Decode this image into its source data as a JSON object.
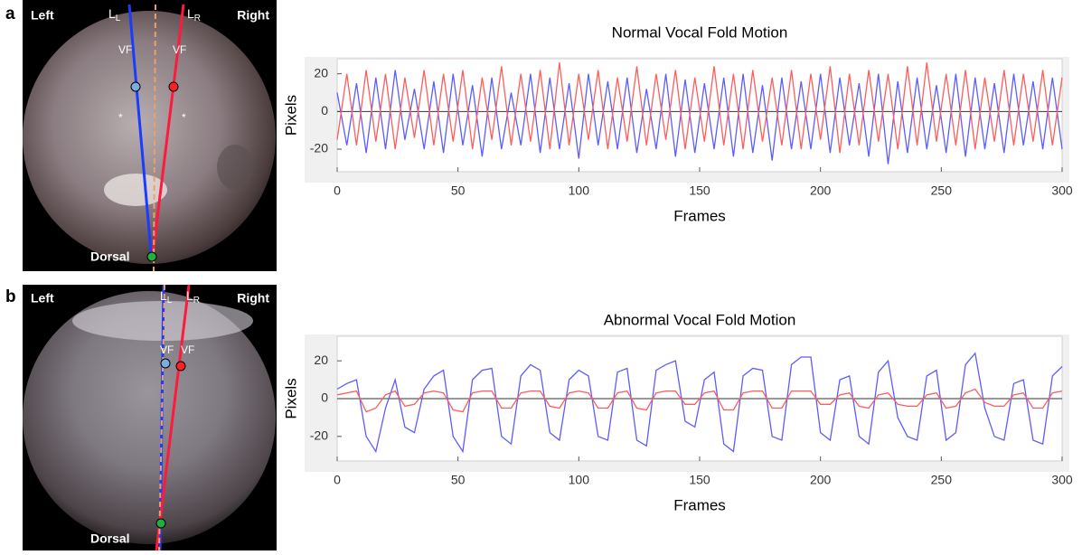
{
  "panels": [
    {
      "label": "a",
      "left": "Left",
      "right": "Right",
      "dorsal": "Dorsal",
      "line_left": "L",
      "line_left_sub": "L",
      "line_right": "L",
      "line_right_sub": "R",
      "vf": "VF",
      "asterisk": "*"
    },
    {
      "label": "b",
      "left": "Left",
      "right": "Right",
      "dorsal": "Dorsal",
      "line_left": "L",
      "line_left_sub": "L",
      "line_right": "L",
      "line_right_sub": "R",
      "vf": "VF"
    }
  ],
  "chart_data": [
    {
      "type": "line",
      "title": "Normal Vocal Fold Motion",
      "xlabel": "Frames",
      "ylabel": "Pixels",
      "xlim": [
        0,
        300
      ],
      "xticks": [
        0,
        50,
        100,
        150,
        200,
        250,
        300
      ],
      "ylim": [
        -32,
        28
      ],
      "yticks": [
        -20,
        0,
        20
      ],
      "x": [
        0,
        4,
        8,
        12,
        16,
        20,
        24,
        28,
        32,
        36,
        40,
        44,
        48,
        52,
        56,
        60,
        64,
        68,
        72,
        76,
        80,
        84,
        88,
        92,
        96,
        100,
        104,
        108,
        112,
        116,
        120,
        124,
        128,
        132,
        136,
        140,
        144,
        148,
        152,
        156,
        160,
        164,
        168,
        172,
        176,
        180,
        184,
        188,
        192,
        196,
        200,
        204,
        208,
        212,
        216,
        220,
        224,
        228,
        232,
        236,
        240,
        244,
        248,
        252,
        256,
        260,
        264,
        268,
        272,
        276,
        280,
        284,
        288,
        292,
        296,
        300
      ],
      "series": [
        {
          "color": "#5c5cff",
          "values": [
            10,
            -18,
            15,
            -22,
            18,
            -20,
            22,
            -15,
            12,
            -20,
            16,
            -22,
            20,
            -18,
            14,
            -24,
            18,
            -20,
            10,
            -18,
            20,
            -22,
            18,
            -20,
            15,
            -25,
            20,
            -18,
            16,
            -20,
            18,
            -22,
            12,
            -20,
            20,
            -24,
            17,
            -22,
            15,
            -20,
            18,
            -24,
            20,
            -22,
            14,
            -26,
            18,
            -20,
            16,
            -20,
            20,
            -22,
            18,
            -18,
            15,
            -24,
            20,
            -28,
            16,
            -22,
            18,
            -20,
            14,
            -22,
            20,
            -24,
            18,
            -20,
            15,
            -22,
            20,
            -18,
            16,
            -20,
            18,
            -20
          ]
        },
        {
          "color": "#ff5c5c",
          "values": [
            -15,
            20,
            -18,
            22,
            -16,
            20,
            -20,
            18,
            -14,
            22,
            -18,
            20,
            -16,
            22,
            -20,
            18,
            -15,
            24,
            -18,
            20,
            -16,
            22,
            -20,
            26,
            -18,
            20,
            -15,
            22,
            -20,
            18,
            -16,
            24,
            -18,
            20,
            -15,
            22,
            -20,
            18,
            -16,
            24,
            -18,
            20,
            -20,
            22,
            -16,
            18,
            -18,
            22,
            -20,
            20,
            -15,
            24,
            -22,
            20,
            -18,
            22,
            -16,
            20,
            -20,
            24,
            -18,
            26,
            -16,
            20,
            -18,
            22,
            -20,
            18,
            -16,
            22,
            -18,
            20,
            -16,
            22,
            -18,
            18
          ]
        }
      ]
    },
    {
      "type": "line",
      "title": "Abnormal Vocal Fold Motion",
      "xlabel": "Frames",
      "ylabel": "Pixels",
      "xlim": [
        0,
        300
      ],
      "xticks": [
        0,
        50,
        100,
        150,
        200,
        250,
        300
      ],
      "ylim": [
        -33,
        33
      ],
      "yticks": [
        -20,
        0,
        20
      ],
      "x": [
        0,
        4,
        8,
        12,
        16,
        20,
        24,
        28,
        32,
        36,
        40,
        44,
        48,
        52,
        56,
        60,
        64,
        68,
        72,
        76,
        80,
        84,
        88,
        92,
        96,
        100,
        104,
        108,
        112,
        116,
        120,
        124,
        128,
        132,
        136,
        140,
        144,
        148,
        152,
        156,
        160,
        164,
        168,
        172,
        176,
        180,
        184,
        188,
        192,
        196,
        200,
        204,
        208,
        212,
        216,
        220,
        224,
        228,
        232,
        236,
        240,
        244,
        248,
        252,
        256,
        260,
        264,
        268,
        272,
        276,
        280,
        284,
        288,
        292,
        296,
        300
      ],
      "series": [
        {
          "color": "#5c5cff",
          "values": [
            5,
            8,
            10,
            -20,
            -28,
            -5,
            10,
            -15,
            -18,
            5,
            12,
            15,
            -20,
            -28,
            10,
            15,
            16,
            -20,
            -24,
            12,
            18,
            15,
            -18,
            -22,
            10,
            15,
            12,
            -20,
            -22,
            14,
            16,
            -22,
            -25,
            15,
            18,
            20,
            -12,
            -15,
            10,
            14,
            -24,
            -28,
            12,
            16,
            15,
            -20,
            -22,
            18,
            22,
            22,
            -18,
            -22,
            10,
            12,
            -20,
            -24,
            14,
            20,
            -10,
            -20,
            -22,
            12,
            15,
            -22,
            -18,
            18,
            24,
            -5,
            -20,
            -22,
            8,
            10,
            -22,
            -24,
            12,
            17
          ]
        },
        {
          "color": "#ff5c5c",
          "values": [
            2,
            3,
            4,
            -7,
            -5,
            2,
            4,
            -4,
            -3,
            3,
            4,
            3,
            -6,
            -7,
            3,
            4,
            4,
            -5,
            -5,
            3,
            4,
            4,
            -4,
            -5,
            3,
            4,
            3,
            -5,
            -5,
            3,
            4,
            -5,
            -6,
            3,
            4,
            4,
            -3,
            -3,
            3,
            4,
            -6,
            -6,
            3,
            4,
            4,
            -5,
            -5,
            4,
            4,
            4,
            -3,
            -3,
            2,
            3,
            -4,
            -5,
            2,
            3,
            -3,
            -4,
            -4,
            2,
            3,
            -5,
            -4,
            3,
            5,
            -2,
            -4,
            -4,
            2,
            3,
            -5,
            -5,
            3,
            4
          ]
        }
      ]
    }
  ]
}
